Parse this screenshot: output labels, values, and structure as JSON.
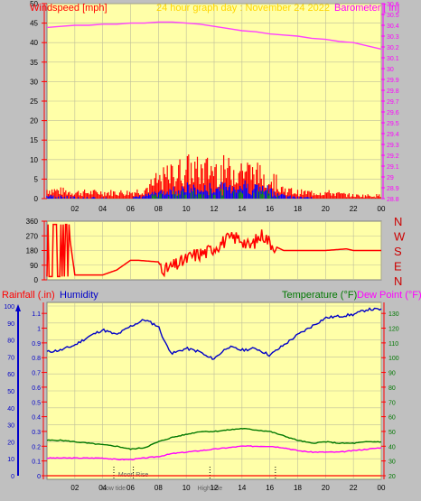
{
  "colors": {
    "background": "#c0c0c0",
    "plot_bg": "#ffffa8",
    "grid": "#bfbf9a",
    "axis_red": "#ff0000",
    "humidity": "#0000c8",
    "temperature": "#007800",
    "dewpoint": "#ff00ff",
    "barometer": "#ff40ff",
    "title": "#ffd500",
    "wind_gust": "#ff0000",
    "wind_avg": "#0000ff",
    "wind_calm": "#00a000",
    "rain": "#ff0000",
    "direction_labels": "#cc0000",
    "rain_axis_text": "#0000c8",
    "temp_axis_text": "#007800",
    "baro_axis_text": "#ff00ff"
  },
  "header": {
    "windspeed_label": "Windspeed [mph]",
    "graph_title": "24 hour graph day : November 24 2022",
    "barometer_label": "Barometer [ in]"
  },
  "middle_header": {
    "rainfall_label": "Rainfall (.in)",
    "humidity_label": "Humidity",
    "temperature_label": "Temperature (°F)",
    "dewpoint_label": "Dew Point (°F)"
  },
  "x_ticks": [
    "02",
    "04",
    "06",
    "08",
    "10",
    "12",
    "14",
    "16",
    "18",
    "20",
    "22",
    "00"
  ],
  "chart_data": [
    {
      "type": "line",
      "name": "wind-barometer",
      "x_range_hours": [
        0,
        24
      ],
      "y_left_ticks": [
        "0",
        "5",
        "10",
        "15",
        "20",
        "25",
        "30",
        "35",
        "40",
        "45",
        "50"
      ],
      "y_left_range": [
        0,
        50
      ],
      "y_right_ticks": [
        "28.8",
        "28.9",
        "29",
        "29.1",
        "29.2",
        "29.3",
        "29.4",
        "29.5",
        "29.6",
        "29.7",
        "29.8",
        "29.9",
        "30",
        "30.1",
        "30.2",
        "30.3",
        "30.4",
        "30.5",
        "30.6"
      ],
      "y_right_range": [
        28.8,
        30.6
      ],
      "barometer": {
        "x": [
          0,
          1,
          2,
          3,
          4,
          5,
          6,
          7,
          8,
          9,
          10,
          11,
          12,
          13,
          14,
          15,
          16,
          17,
          18,
          19,
          20,
          21,
          22,
          23,
          24
        ],
        "y": [
          30.38,
          30.39,
          30.4,
          30.4,
          30.41,
          30.41,
          30.42,
          30.42,
          30.43,
          30.43,
          30.42,
          30.41,
          30.39,
          30.37,
          30.35,
          30.34,
          30.32,
          30.31,
          30.3,
          30.28,
          30.27,
          30.25,
          30.24,
          30.21,
          30.18
        ]
      },
      "gust_profile": {
        "x": [
          0,
          2,
          4,
          6,
          7,
          8,
          9,
          10,
          11,
          12,
          13,
          14,
          15,
          16,
          17,
          18,
          20,
          22,
          24
        ],
        "y": [
          3,
          2,
          2,
          2,
          3,
          6,
          8,
          10,
          9,
          10,
          9,
          10,
          8,
          7,
          3,
          2,
          2,
          1,
          1
        ]
      },
      "average_profile": {
        "x": [
          0,
          2,
          4,
          6,
          7,
          8,
          9,
          10,
          11,
          12,
          13,
          14,
          15,
          16,
          17,
          18,
          20,
          22,
          24
        ],
        "y": [
          1,
          0.5,
          0.3,
          0.3,
          1,
          2,
          3,
          4,
          3,
          4,
          4,
          5,
          4,
          3,
          1,
          0.5,
          0.3,
          0.2,
          0.2
        ]
      }
    },
    {
      "type": "line",
      "name": "wind-direction",
      "y_ticks": [
        "360",
        "270",
        "180",
        "90",
        "0"
      ],
      "y_range": [
        0,
        360
      ],
      "compass_labels": [
        "N",
        "W",
        "S",
        "E",
        "N"
      ],
      "x": [
        0,
        0.3,
        0.6,
        1.0,
        1.5,
        2.0,
        3.0,
        4.0,
        5.0,
        6.0,
        6.5,
        8.0,
        8.5,
        9.5,
        10.5,
        11.5,
        12.0,
        12.8,
        13.5,
        14.0,
        14.5,
        15.0,
        15.5,
        16.0,
        16.5,
        17.0,
        18.0,
        20.0,
        21.5,
        22.0,
        24.0
      ],
      "y": [
        30,
        30,
        330,
        20,
        340,
        30,
        30,
        30,
        60,
        120,
        120,
        110,
        60,
        100,
        150,
        170,
        200,
        240,
        260,
        250,
        200,
        240,
        280,
        230,
        200,
        180,
        180,
        180,
        190,
        180,
        180
      ]
    },
    {
      "type": "line",
      "name": "humidity-temperature",
      "x_range_hours": [
        0,
        24
      ],
      "humidity": {
        "y_ticks": [
          "0",
          "10",
          "20",
          "30",
          "40",
          "50",
          "60",
          "70",
          "80",
          "90",
          "100"
        ],
        "y_range": [
          0,
          100
        ],
        "x": [
          0,
          1,
          2,
          3,
          4,
          5,
          6,
          7,
          8,
          8.5,
          9,
          10,
          11,
          11.5,
          12,
          13,
          14,
          15,
          16,
          17,
          18,
          19,
          20,
          21,
          22,
          23,
          24
        ],
        "y": [
          73,
          74,
          77,
          82,
          86,
          83,
          88,
          92,
          88,
          78,
          72,
          75,
          73,
          70,
          69,
          76,
          74,
          75,
          71,
          77,
          83,
          88,
          93,
          94,
          95,
          98,
          98
        ]
      },
      "rainfall": {
        "y_ticks": [
          "0",
          "0.1",
          "0.2",
          "0.3",
          "0.4",
          "0.5",
          "0.6",
          "0.7",
          "0.8",
          "0.9",
          "1",
          "1.1"
        ],
        "y_range": [
          0,
          1.15
        ],
        "x": [
          0,
          24
        ],
        "y": [
          0,
          0
        ]
      },
      "temperature": {
        "y_ticks": [
          "20",
          "30",
          "40",
          "50",
          "60",
          "70",
          "80",
          "90",
          "100",
          "110",
          "120",
          "130"
        ],
        "y_range": [
          20,
          135
        ],
        "x": [
          0,
          1,
          2,
          3,
          4,
          5,
          6,
          7,
          8,
          9,
          10,
          11,
          12,
          13,
          14,
          15,
          16,
          17,
          18,
          19,
          20,
          21,
          22,
          23,
          24
        ],
        "y": [
          44,
          44,
          43,
          42,
          41,
          40,
          38,
          39,
          43,
          46,
          48,
          50,
          50,
          51,
          52,
          51,
          50,
          47,
          44,
          42,
          43,
          42,
          42,
          43,
          43
        ]
      },
      "dewpoint": {
        "x": [
          0,
          1,
          2,
          3,
          4,
          5,
          6,
          7,
          8,
          9,
          10,
          11,
          12,
          13,
          14,
          15,
          16,
          17,
          18,
          19,
          20,
          21,
          22,
          23,
          24
        ],
        "y": [
          32,
          32,
          32,
          32,
          32,
          31,
          31,
          32,
          33,
          35,
          36,
          37,
          38,
          39,
          40,
          40,
          40,
          39,
          37,
          36,
          36,
          36,
          37,
          38,
          39
        ]
      },
      "events": [
        {
          "hour": 4.8,
          "label": "Low tide"
        },
        {
          "hour": 6.2,
          "label": "Moon Rise"
        },
        {
          "hour": 11.7,
          "label": "High tide"
        },
        {
          "hour": 16.4,
          "label": ""
        }
      ]
    }
  ]
}
